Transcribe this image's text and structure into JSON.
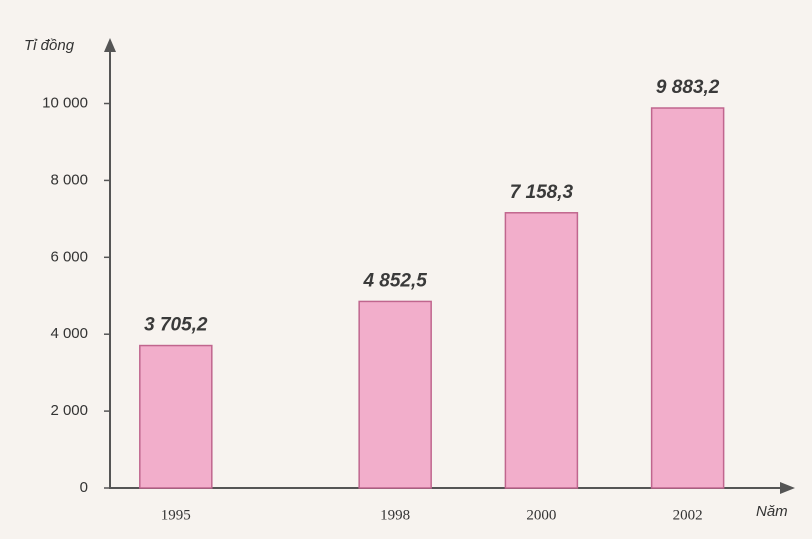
{
  "chart_data": {
    "type": "bar",
    "y_label": "Tỉ đồng",
    "x_label": "Năm",
    "x": [
      1995,
      1998,
      2000,
      2002
    ],
    "values": [
      3705.2,
      4852.5,
      7158.3,
      9883.2
    ],
    "value_labels": [
      "3 705,2",
      "4 852,5",
      "7 158,3",
      "9 883,2"
    ],
    "color": "#f2aecb",
    "xlim": [
      1994.1,
      2003.4
    ],
    "ylim": [
      0,
      11600
    ],
    "yticks": [
      0,
      {
        "value": 2000,
        "label": "2 000"
      },
      {
        "value": 4000,
        "label": "4 000"
      },
      {
        "value": 6000,
        "label": "6 000"
      },
      {
        "value": 8000,
        "label": "8 000"
      },
      {
        "value": 10000,
        "label": "10 000"
      }
    ]
  }
}
